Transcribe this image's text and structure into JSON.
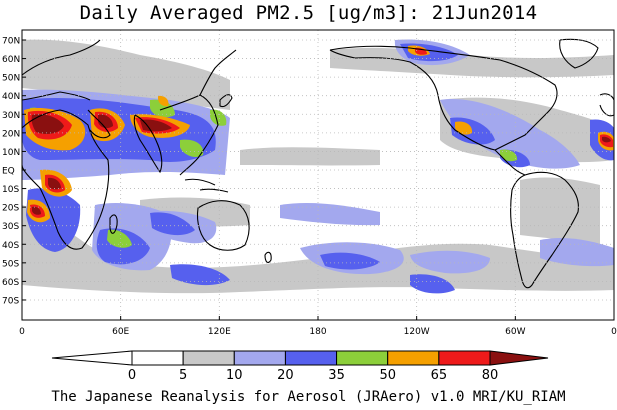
{
  "title": "Daily Averaged PM2.5 [ug/m3]: 21Jun2014",
  "latitude_labels": [
    "70N",
    "60N",
    "50N",
    "40N",
    "30N",
    "20N",
    "10N",
    "EQ",
    "10S",
    "20S",
    "30S",
    "40S",
    "50S",
    "60S",
    "70S"
  ],
  "longitude_labels": [
    "0",
    "60E",
    "120E",
    "180",
    "120W",
    "60W",
    "0"
  ],
  "colorbar": {
    "ticks": [
      "0",
      "5",
      "10",
      "20",
      "35",
      "50",
      "65",
      "80"
    ],
    "colors": [
      "#ffffff",
      "#c8c8c8",
      "#a3a8ee",
      "#5660ee",
      "#8ccf3a",
      "#f5a000",
      "#ee1a1a",
      "#8a1010"
    ],
    "under_color": "#ffffff",
    "over_color": "#8a1010"
  },
  "palette": {
    "gray": "#c8c8c8",
    "light_blue": "#a3a8ee",
    "blue": "#5660ee",
    "green": "#8ccf3a",
    "orange": "#f5a000",
    "red": "#ee1a1a",
    "dark_red": "#8a1010"
  },
  "credit": "The Japanese Reanalysis for Aerosol (JRAero) v1.0 MRI/KU_RIAM"
}
